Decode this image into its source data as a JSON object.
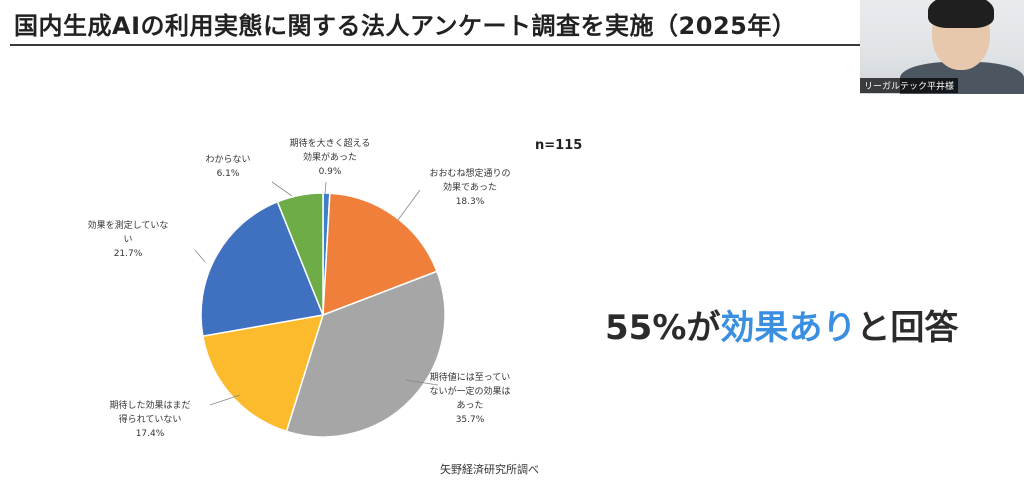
{
  "slide": {
    "title": "国内生成AIの利用実態に関する法人アンケート調査を実施（2025年）",
    "headline_prefix": "55%が",
    "headline_accent": "効果あり",
    "headline_suffix": "と回答",
    "source": "矢野経済研究所調べ"
  },
  "webcam": {
    "speaker_name": "リーガルテック平井様"
  },
  "colors": {
    "accent": "#3b8fe0",
    "title_rule": "#3a3a3a"
  },
  "chart_data": {
    "type": "pie",
    "title": "",
    "annotation": "n=115",
    "slices": [
      {
        "label_lines": [
          "期待を大きく超える",
          "効果があった"
        ],
        "value": 0.9,
        "value_label": "0.9%",
        "color": "#3e7fc7"
      },
      {
        "label_lines": [
          "おおむね想定通りの",
          "効果であった"
        ],
        "value": 18.3,
        "value_label": "18.3%",
        "color": "#f07f3c"
      },
      {
        "label_lines": [
          "期待値には至ってい",
          "ないが一定の効果は",
          "あった"
        ],
        "value": 35.7,
        "value_label": "35.7%",
        "color": "#a6a6a6"
      },
      {
        "label_lines": [
          "期待した効果はまだ",
          "得られていない"
        ],
        "value": 17.4,
        "value_label": "17.4%",
        "color": "#fbbb2d"
      },
      {
        "label_lines": [
          "効果を測定していな",
          "い"
        ],
        "value": 21.7,
        "value_label": "21.7%",
        "color": "#3f71c0"
      },
      {
        "label_lines": [
          "わからない"
        ],
        "value": 6.1,
        "value_label": "6.1%",
        "color": "#6dac46"
      }
    ]
  }
}
